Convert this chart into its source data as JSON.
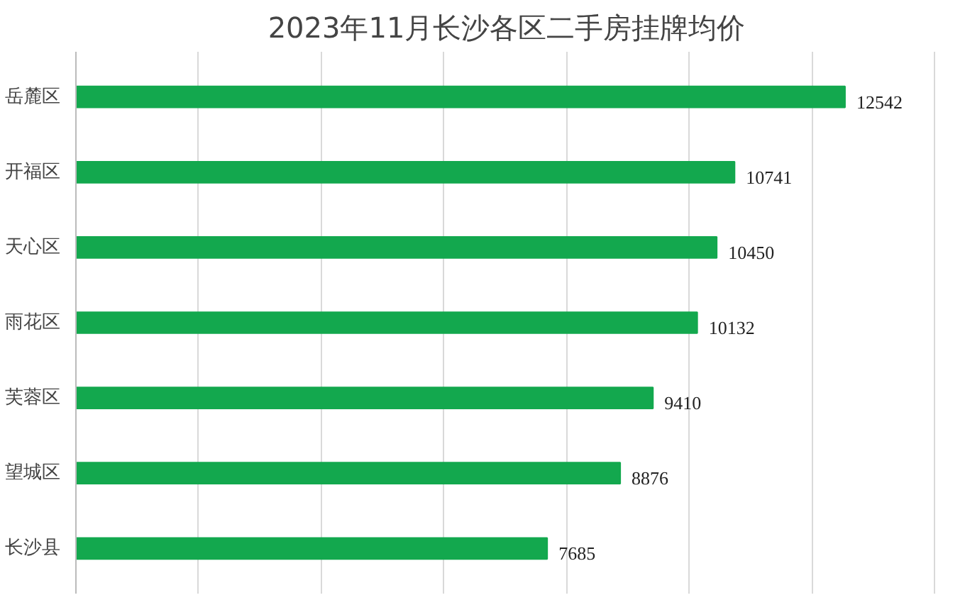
{
  "chart_data": {
    "type": "bar",
    "orientation": "horizontal",
    "title": "2023年11月长沙各区二手房挂牌均价",
    "categories": [
      "岳麓区",
      "开福区",
      "天心区",
      "雨花区",
      "芙蓉区",
      "望城区",
      "长沙县"
    ],
    "values": [
      12542,
      10741,
      10450,
      10132,
      9410,
      8876,
      7685
    ],
    "color": "#13a84e",
    "grid": "x",
    "tick_labels": "y",
    "data_labels": true
  }
}
